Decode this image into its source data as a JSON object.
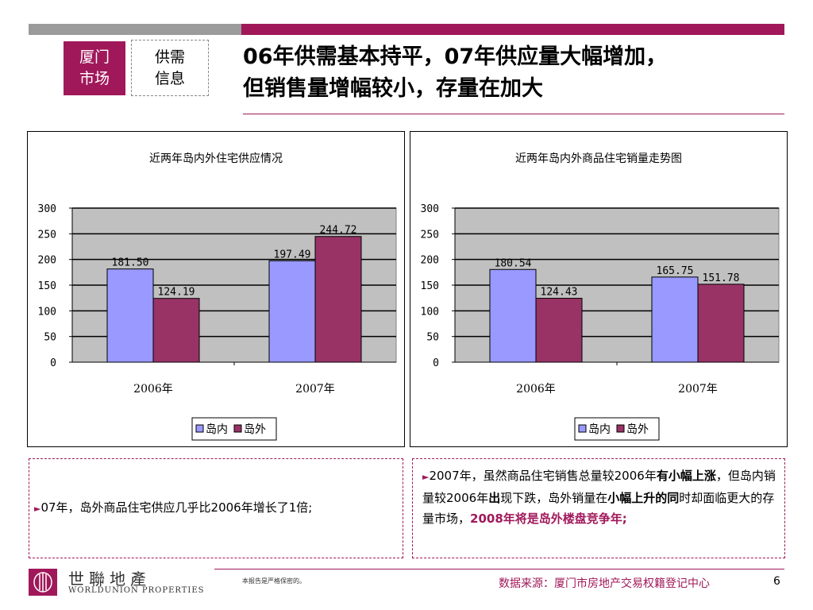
{
  "header": {
    "tag_city_line1": "厦门",
    "tag_city_line2": "市场",
    "tag_info_line1": "供需",
    "tag_info_line2": "信息",
    "title_line1": "06年供需基本持平，07年供应量大幅增加，",
    "title_line2": "但销售量增幅较小，存量在加大"
  },
  "colors": {
    "accent": "#a0185a",
    "series_island": "#9999ff",
    "series_outside": "#993366",
    "plot_bg": "#c0c0c0"
  },
  "chart_data": [
    {
      "type": "bar",
      "title": "近两年岛内外住宅供应情况",
      "categories": [
        "2006年",
        "2007年"
      ],
      "series": [
        {
          "name": "岛内",
          "values": [
            181.5,
            197.49
          ],
          "labels": [
            "181.50",
            "197.49"
          ]
        },
        {
          "name": "岛外",
          "values": [
            124.19,
            244.72
          ],
          "labels": [
            "124.19",
            "244.72"
          ]
        }
      ],
      "ylim": [
        0,
        300
      ],
      "yticks": [
        "0",
        "50",
        "100",
        "150",
        "200",
        "250",
        "300"
      ],
      "grid": true,
      "legend": "bottom"
    },
    {
      "type": "bar",
      "title": "近两年岛内外商品住宅销量走势图",
      "categories": [
        "2006年",
        "2007年"
      ],
      "series": [
        {
          "name": "岛内",
          "values": [
            180.54,
            165.75
          ],
          "labels": [
            "180.54",
            "165.75"
          ]
        },
        {
          "name": "岛外",
          "values": [
            124.43,
            151.78
          ],
          "labels": [
            "124.43",
            "151.78"
          ]
        }
      ],
      "ylim": [
        0,
        300
      ],
      "yticks": [
        "0",
        "50",
        "100",
        "150",
        "200",
        "250",
        "300"
      ],
      "grid": true,
      "legend": "bottom"
    }
  ],
  "notes": {
    "left_text": "07年，岛外商品住宅供应几乎比2006年增长了1倍;",
    "right_a": "2007年，虽然商品住宅销售总量较2006年",
    "right_b": "有小幅上涨",
    "right_c": "，但岛内销量较2006年",
    "right_d": "出",
    "right_e": "现下跌，岛外销量在",
    "right_f": "小幅上升的同",
    "right_g": "时却面临更大的存量市场，",
    "right_h": "2008年将是岛外楼盘竞争年;"
  },
  "footer": {
    "logo_cn": "世聯地產",
    "logo_en": "WORLDUNION PROPERTIES",
    "confidential": "本报告是严格保密的。",
    "source": "数据来源：厦门市房地产交易权籍登记中心",
    "page_number": "6"
  }
}
